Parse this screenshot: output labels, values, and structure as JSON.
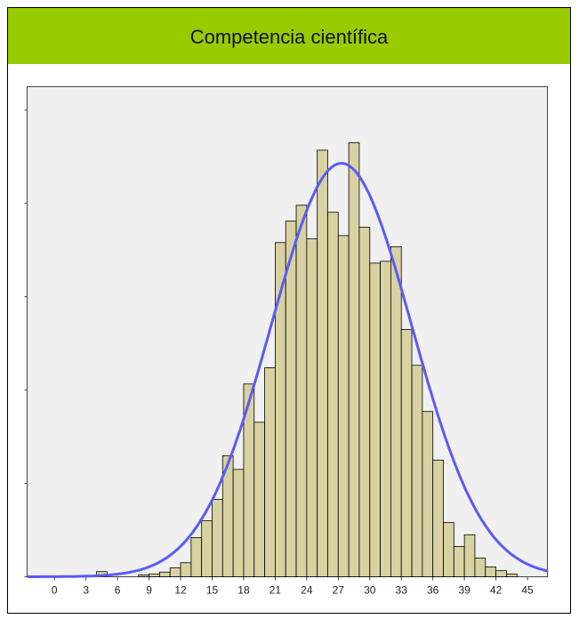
{
  "chart_data": {
    "type": "histogram",
    "title": "Competencia científica",
    "bins": [
      4,
      5,
      6,
      7,
      8,
      9,
      10,
      11,
      12,
      13,
      14,
      15,
      16,
      17,
      18,
      19,
      20,
      21,
      22,
      23,
      24,
      25,
      26,
      27,
      28,
      29,
      30,
      31,
      32,
      33,
      34,
      35,
      36,
      37,
      38,
      39,
      40,
      41,
      42,
      43,
      44
    ],
    "values": [
      1.1,
      0,
      0,
      0,
      0.4,
      0.6,
      1,
      1.9,
      3,
      8.4,
      12,
      16.6,
      25.9,
      23,
      41.3,
      33.1,
      44.8,
      71.6,
      76.2,
      79.6,
      72.4,
      91.4,
      78.1,
      73.1,
      93,
      74.9,
      67.2,
      67.6,
      70.7,
      53,
      45.3,
      35.4,
      25,
      11.6,
      6.5,
      9,
      4,
      2.1,
      1.3,
      0.6
    ],
    "color": "#d8d2a2",
    "curve": {
      "mean": 27.3,
      "sd": 6.7,
      "peak": 88.6,
      "color": "#5b5bf5"
    },
    "xlim": [
      -2.6,
      46.9
    ],
    "xticks": [
      0,
      3,
      6,
      9,
      12,
      15,
      18,
      21,
      24,
      27,
      30,
      33,
      36,
      39,
      42,
      45
    ],
    "ylim": [
      0,
      105
    ],
    "yticks": [
      0,
      20,
      40,
      60,
      80,
      100
    ]
  }
}
